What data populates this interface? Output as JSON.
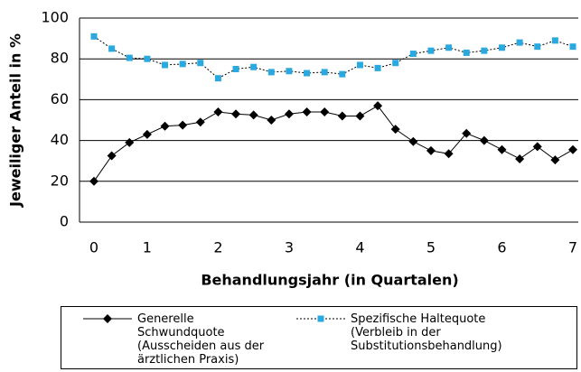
{
  "chart_data": {
    "type": "line",
    "ylabel": "Jeweiliger Anteil in %",
    "xlabel": "Behandlungsjahr (in Quartalen)",
    "categories": [
      "0",
      null,
      null,
      "1",
      null,
      null,
      null,
      "2",
      null,
      null,
      null,
      "3",
      null,
      null,
      null,
      "4",
      null,
      null,
      null,
      "5",
      null,
      null,
      null,
      "6",
      null,
      null,
      null,
      "7"
    ],
    "series": [
      {
        "name": "Generelle Schwundquote (Ausscheiden aus der ärztlichen Praxis)",
        "color": "#000000",
        "marker": "diamond",
        "dash": "solid",
        "values": [
          20,
          32.5,
          39,
          43,
          47,
          47.5,
          49,
          54,
          53,
          52.5,
          50,
          53,
          54,
          54,
          52,
          52,
          57,
          45.5,
          39.5,
          35,
          33.5,
          43.5,
          40,
          35.5,
          31,
          37,
          30.5,
          35.5
        ]
      },
      {
        "name": "Spezifische Haltequote (Verbleib in der Substitutionsbehandlung)",
        "color": "#29a9e0",
        "marker": "square",
        "dash": "dotted",
        "values": [
          91,
          85,
          80.5,
          80,
          77,
          77.5,
          78,
          70.5,
          75,
          76,
          73.5,
          74,
          73,
          73.5,
          72.5,
          77,
          75.5,
          78,
          82.5,
          84,
          85.5,
          83,
          84,
          85.5,
          88,
          86,
          89,
          86
        ]
      }
    ],
    "ylim": [
      0,
      100
    ],
    "yticks": [
      0,
      20,
      40,
      60,
      80,
      100
    ],
    "grid": true
  }
}
